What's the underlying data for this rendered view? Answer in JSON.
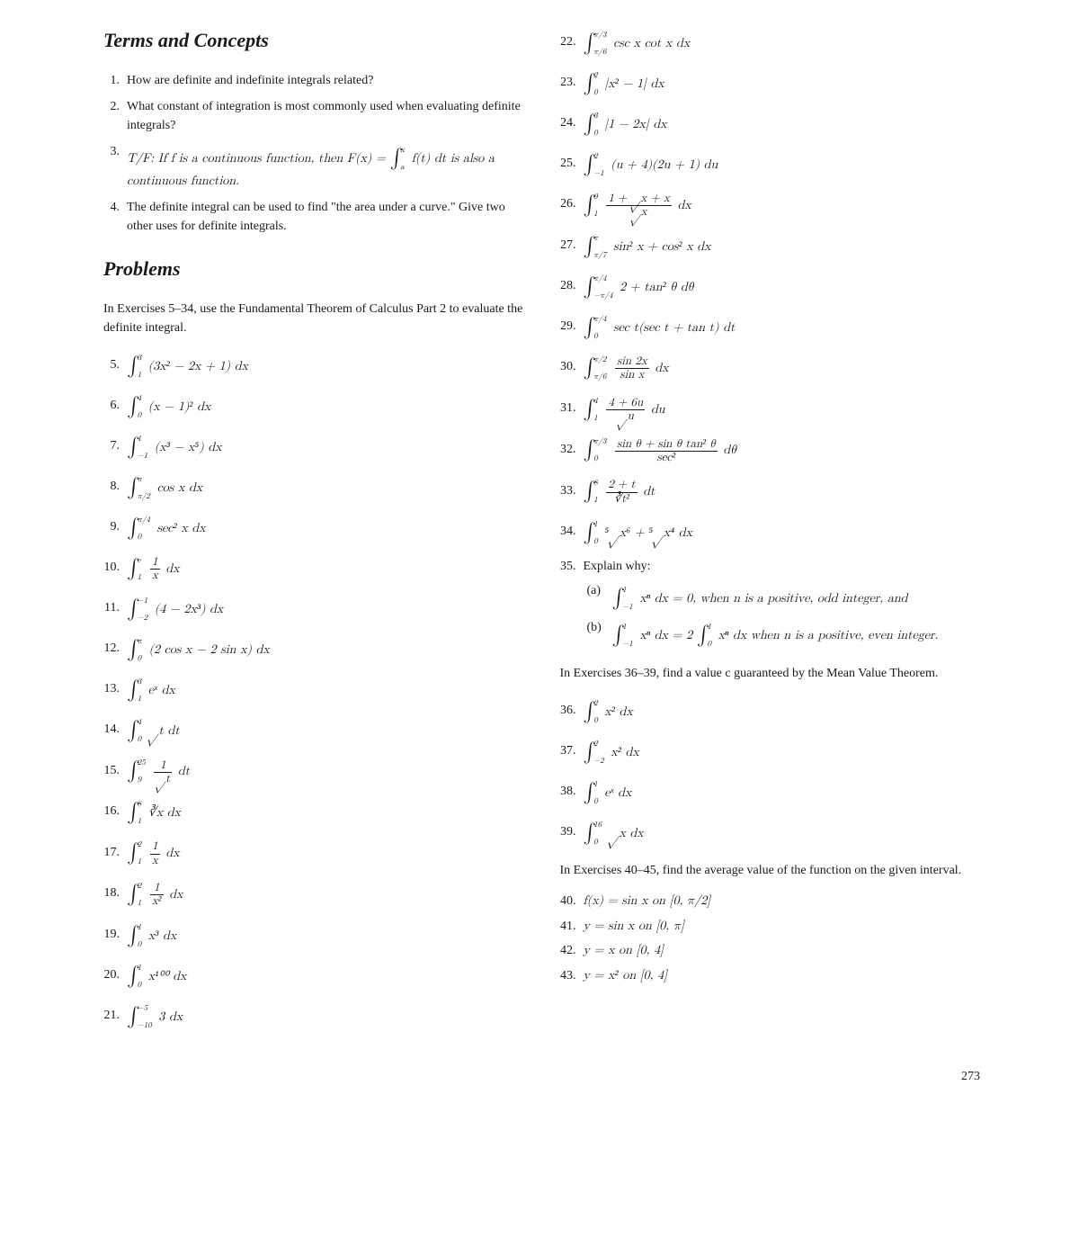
{
  "pageNumber": "273",
  "headings": {
    "terms": "Terms and Concepts",
    "problems": "Problems"
  },
  "concepts": [
    {
      "n": "1.",
      "text": "How are definite and indefinite integrals related?"
    },
    {
      "n": "2.",
      "text": "What constant of integration is most commonly used when evaluating definite integrals?"
    },
    {
      "n": "3.",
      "text": "T/F: If f is a continuous function, then F(x) = ∫ₐˣ f(t) dt is also a continuous function."
    },
    {
      "n": "4.",
      "text": "The definite integral can be used to find \"the area under a curve.\" Give two other uses for definite integrals."
    }
  ],
  "instr5_34": "In Exercises 5–34, use the Fundamental Theorem of Calculus Part 2 to evaluate the definite integral.",
  "probs_left": {
    "5": {
      "n": "5.",
      "lo": "1",
      "up": "3",
      "body": "(3x² − 2x + 1) dx"
    },
    "6": {
      "n": "6.",
      "lo": "0",
      "up": "4",
      "body": "(x − 1)² dx"
    },
    "7": {
      "n": "7.",
      "lo": "−1",
      "up": "1",
      "body": "(x³ − x⁵) dx"
    },
    "8": {
      "n": "8.",
      "lo": "π/2",
      "up": "π",
      "body": "cos x dx"
    },
    "9": {
      "n": "9.",
      "lo": "0",
      "up": "π/4",
      "body": "sec² x dx"
    },
    "10": {
      "n": "10.",
      "lo": "1",
      "up": "e",
      "fracN": "1",
      "fracD": "x",
      "tail": " dx"
    },
    "11": {
      "n": "11.",
      "lo": "−2",
      "up": "−1",
      "body": "(4 − 2x³) dx"
    },
    "12": {
      "n": "12.",
      "lo": "0",
      "up": "π",
      "body": "(2 cos x − 2 sin x) dx"
    },
    "13": {
      "n": "13.",
      "lo": "1",
      "up": "3",
      "body": "eˣ dx"
    },
    "14": {
      "n": "14.",
      "lo": "0",
      "up": "4",
      "body": "√t dt"
    },
    "15": {
      "n": "15.",
      "lo": "9",
      "up": "25",
      "fracN": "1",
      "fracD": "√t",
      "tail": " dt"
    },
    "16": {
      "n": "16.",
      "lo": "1",
      "up": "8",
      "body": "∛x dx"
    },
    "17": {
      "n": "17.",
      "lo": "1",
      "up": "2",
      "fracN": "1",
      "fracD": "x",
      "tail": " dx"
    },
    "18": {
      "n": "18.",
      "lo": "1",
      "up": "2",
      "fracN": "1",
      "fracD": "x²",
      "tail": " dx"
    },
    "19": {
      "n": "19.",
      "lo": "0",
      "up": "1",
      "body": "x³ dx"
    },
    "20": {
      "n": "20.",
      "lo": "0",
      "up": "1",
      "body": "x¹⁰⁰ dx"
    },
    "21": {
      "n": "21.",
      "lo": "−10",
      "up": "−5",
      "body": "3 dx"
    }
  },
  "probs_right": {
    "22": {
      "n": "22.",
      "lo": "π/6",
      "up": "π/3",
      "body": "csc x cot x dx"
    },
    "23": {
      "n": "23.",
      "lo": "0",
      "up": "2",
      "body": "|x² − 1| dx"
    },
    "24": {
      "n": "24.",
      "lo": "0",
      "up": "3",
      "body": "|1 − 2x| dx"
    },
    "25": {
      "n": "25.",
      "lo": "−1",
      "up": "2",
      "body": "(u + 4)(2u + 1) du"
    },
    "26": {
      "n": "26.",
      "lo": "1",
      "up": "9",
      "fracN": "1 + √x + x",
      "fracD": "√x",
      "tail": " dx"
    },
    "27": {
      "n": "27.",
      "lo": "π/7",
      "up": "π",
      "body": "sin² x + cos² x dx"
    },
    "28": {
      "n": "28.",
      "lo": "−π/4",
      "up": "π/4",
      "body": "2 + tan² θ dθ"
    },
    "29": {
      "n": "29.",
      "lo": "0",
      "up": "π/4",
      "body": "sec t(sec t + tan t) dt"
    },
    "30": {
      "n": "30.",
      "lo": "π/6",
      "up": "π/2",
      "fracN": "sin 2x",
      "fracD": "sin x",
      "tail": " dx"
    },
    "31": {
      "n": "31.",
      "lo": "1",
      "up": "4",
      "fracN": "4 + 6u",
      "fracD": "√u",
      "tail": " du"
    },
    "32": {
      "n": "32.",
      "lo": "0",
      "up": "π/3",
      "fracN": "sin θ + sin θ tan² θ",
      "fracD": "sec²",
      "tail": " dθ"
    },
    "33": {
      "n": "33.",
      "lo": "1",
      "up": "8",
      "fracN": "2 + t",
      "fracD": "∛t²",
      "tail": " dt"
    },
    "34": {
      "n": "34.",
      "lo": "0",
      "up": "1",
      "body": "⁵√x⁶ + ⁵√x⁴ dx"
    }
  },
  "p35": {
    "n": "35.",
    "lead": "Explain why:",
    "a_lbl": "(a)",
    "a": {
      "lo": "−1",
      "up": "1",
      "body": "xⁿ dx = 0, when n is a positive, odd integer, and"
    },
    "b_lbl": "(b)",
    "b": {
      "lo": "−1",
      "up": "1",
      "pre": "xⁿ dx = 2",
      "lo2": "0",
      "up2": "1",
      "body": " xⁿ dx when n is a positive, even integer."
    }
  },
  "instr36_39": "In Exercises 36–39, find a value c guaranteed by the Mean Value Theorem.",
  "probs_36_39": {
    "36": {
      "n": "36.",
      "lo": "0",
      "up": "2",
      "body": "x² dx"
    },
    "37": {
      "n": "37.",
      "lo": "−2",
      "up": "2",
      "body": "x² dx"
    },
    "38": {
      "n": "38.",
      "lo": "0",
      "up": "1",
      "body": "eˣ dx"
    },
    "39": {
      "n": "39.",
      "lo": "0",
      "up": "16",
      "body": "√x dx"
    }
  },
  "instr40_45": "In Exercises 40–45, find the average value of the function on the given interval.",
  "probs_40_45": {
    "40": {
      "n": "40.",
      "text": "f(x) = sin x on [0, π/2]"
    },
    "41": {
      "n": "41.",
      "text": "y = sin x on [0, π]"
    },
    "42": {
      "n": "42.",
      "text": "y = x on [0, 4]"
    },
    "43": {
      "n": "43.",
      "text": "y = x² on [0, 4]"
    }
  }
}
